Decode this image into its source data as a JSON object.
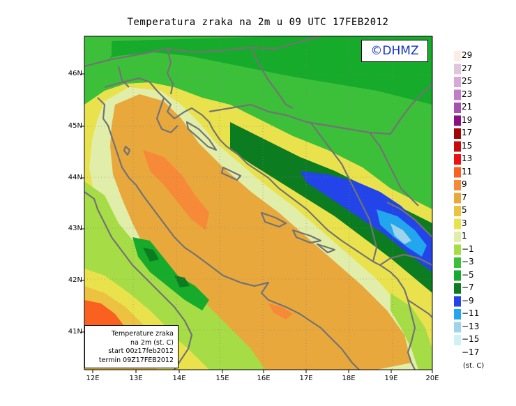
{
  "title": "Temperatura zraka na 2m u 09 UTC 17FEB2012",
  "copyright": "©DHMZ",
  "infobox": {
    "line1": "Temperature zraka",
    "line2": "na 2m (st. C)",
    "line3": "start 00z17feb2012",
    "line4": "termin 09Z17FEB2012"
  },
  "lat_labels": [
    "46N",
    "45N",
    "44N",
    "43N",
    "42N",
    "41N"
  ],
  "lon_labels": [
    "12E",
    "13E",
    "14E",
    "15E",
    "16E",
    "17E",
    "18E",
    "19E",
    "20E"
  ],
  "legend": {
    "unit": "(st. C)",
    "labels": [
      "29",
      "27",
      "25",
      "23",
      "21",
      "19",
      "17",
      "15",
      "13",
      "11",
      "9",
      "7",
      "5",
      "3",
      "1",
      "−1",
      "−3",
      "−5",
      "−7",
      "−9",
      "−11",
      "−13",
      "−15",
      "−17"
    ],
    "colors": [
      "#fbeee0",
      "#e0c6dc",
      "#d8a8d6",
      "#c27ec6",
      "#a651b0",
      "#8c0f82",
      "#a30505",
      "#c80a0a",
      "#ee1010",
      "#fa6020",
      "#f78a38",
      "#e8a83c",
      "#ecc240",
      "#eae24c",
      "#e0eeaa",
      "#a6dc46",
      "#3cc03a",
      "#16ab2a",
      "#0c7c20",
      "#2244e8",
      "#22a6ee",
      "#9ed4ea",
      "#cff0f4",
      "#ffffff"
    ]
  },
  "colors": {
    "land_green": "#3cc03a",
    "sea_orange": "#e8a83c",
    "cold_blue": "#2244e8",
    "copyright_text": "#1530c8",
    "border_line": "#737373"
  }
}
